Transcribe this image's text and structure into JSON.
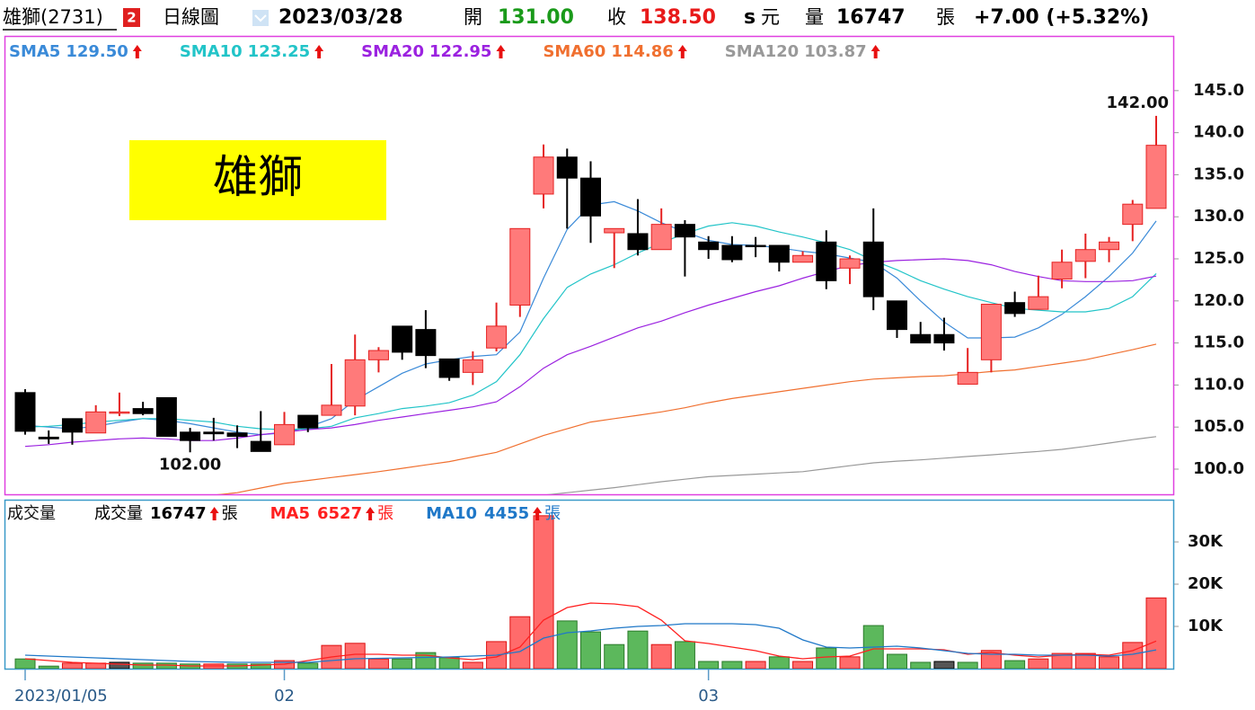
{
  "header": {
    "name": "雄獅(2731)",
    "badge": "2",
    "period": "日線圖",
    "date": "2023/03/28",
    "open_label": "開",
    "open": "131.00",
    "close_label": "收",
    "close": "138.50",
    "s": "s",
    "currency": "元",
    "volume_label": "量",
    "volume": "16747",
    "volume_unit": "張",
    "change": "+7.00 (+5.32%)"
  },
  "chart_data": [
    {
      "type": "candlestick",
      "annotation": "雄獅",
      "categories": [
        "2023/01/05",
        null,
        null,
        null,
        null,
        null,
        null,
        null,
        null,
        null,
        null,
        "02",
        null,
        null,
        null,
        null,
        null,
        null,
        null,
        null,
        null,
        null,
        null,
        null,
        null,
        null,
        null,
        null,
        null,
        "03",
        null,
        null,
        null,
        null,
        null,
        null,
        null,
        null,
        null,
        null,
        null,
        null,
        null,
        null,
        null,
        null,
        null,
        null,
        null
      ],
      "open": [
        109.1,
        103.8,
        106.0,
        104.3,
        106.8,
        107.2,
        108.5,
        104.4,
        104.4,
        104.3,
        103.3,
        102.9,
        106.4,
        106.4,
        107.5,
        113.0,
        117.0,
        116.6,
        113.1,
        111.5,
        114.4,
        119.5,
        132.7,
        137.1,
        134.6,
        128.1,
        128.0,
        126.1,
        129.1,
        127.0,
        126.6,
        126.6,
        126.6,
        124.6,
        127.0,
        123.9,
        127.0,
        120.0,
        116.0,
        116.0,
        110.1,
        113.0,
        119.8,
        119.0,
        122.6,
        124.7,
        126.1,
        129.1,
        131.0
      ],
      "high": [
        109.5,
        104.6,
        106.0,
        107.6,
        109.1,
        108.0,
        108.5,
        104.9,
        106.1,
        105.2,
        106.9,
        106.8,
        106.4,
        112.5,
        116.0,
        114.5,
        117.0,
        118.9,
        113.1,
        114.0,
        119.8,
        128.6,
        138.6,
        138.1,
        136.6,
        128.6,
        132.1,
        131.0,
        129.6,
        127.7,
        127.7,
        127.6,
        126.6,
        125.9,
        128.4,
        125.4,
        131.0,
        120.0,
        117.5,
        118.0,
        114.4,
        119.6,
        121.1,
        123.0,
        126.1,
        128.0,
        127.6,
        132.0,
        142.0
      ],
      "low": [
        104.1,
        103.0,
        102.9,
        104.3,
        106.3,
        106.4,
        103.9,
        102.0,
        103.4,
        102.5,
        102.1,
        102.9,
        104.4,
        106.4,
        106.4,
        111.5,
        113.0,
        112.0,
        110.5,
        110.0,
        114.0,
        118.1,
        131.0,
        128.6,
        126.9,
        123.9,
        125.4,
        126.1,
        122.9,
        125.0,
        124.6,
        125.2,
        123.5,
        124.6,
        121.4,
        122.0,
        118.9,
        115.6,
        115.0,
        114.1,
        110.1,
        111.5,
        118.1,
        119.0,
        121.5,
        122.7,
        124.6,
        127.1,
        131.0
      ],
      "close": [
        104.5,
        103.6,
        104.4,
        106.8,
        106.8,
        106.6,
        103.9,
        103.4,
        104.2,
        103.9,
        102.1,
        105.3,
        104.9,
        107.6,
        113.0,
        114.1,
        113.9,
        113.5,
        110.9,
        113.0,
        117.0,
        128.6,
        137.1,
        134.6,
        130.1,
        128.6,
        126.1,
        129.1,
        127.6,
        126.1,
        124.9,
        126.5,
        124.6,
        125.4,
        122.4,
        125.0,
        120.5,
        116.6,
        115.0,
        115.0,
        111.5,
        119.6,
        118.5,
        120.5,
        124.6,
        126.1,
        127.0,
        131.5,
        138.5
      ],
      "up_color": "#ff7a7a",
      "up_edge": "#e52222",
      "down_color": "#000000",
      "series": [
        {
          "name": "SMA5",
          "color": "#3a8ad8",
          "legend_value": "129.50",
          "values": [
            105.2,
            105.0,
            104.8,
            105.1,
            105.6,
            106.0,
            105.8,
            105.4,
            104.9,
            104.4,
            104.1,
            104.3,
            105.0,
            106.0,
            108.2,
            109.8,
            111.4,
            112.5,
            113.0,
            113.4,
            113.6,
            116.3,
            122.7,
            128.5,
            131.4,
            131.8,
            130.7,
            129.3,
            128.2,
            127.2,
            126.7,
            126.6,
            126.3,
            125.9,
            125.6,
            125.1,
            124.6,
            122.7,
            120.0,
            117.5,
            115.6,
            115.6,
            115.7,
            116.8,
            118.4,
            120.5,
            122.9,
            125.7,
            129.5
          ]
        },
        {
          "name": "SMA10",
          "color": "#22c4c8",
          "legend_value": "123.25",
          "values": [
            105.0,
            105.1,
            105.3,
            105.6,
            105.8,
            106.0,
            106.0,
            105.8,
            105.6,
            105.1,
            104.8,
            104.7,
            104.8,
            105.1,
            106.1,
            106.6,
            107.2,
            107.5,
            107.9,
            108.8,
            110.4,
            113.6,
            117.9,
            121.6,
            123.2,
            124.3,
            125.7,
            126.9,
            128.0,
            128.9,
            129.3,
            128.9,
            128.2,
            127.6,
            126.9,
            126.1,
            124.8,
            123.7,
            122.4,
            121.4,
            120.5,
            119.8,
            119.1,
            118.9,
            118.7,
            118.7,
            119.1,
            120.5,
            123.25
          ]
        },
        {
          "name": "SMA20",
          "color": "#9b22e0",
          "legend_value": "122.95",
          "values": [
            102.7,
            102.9,
            103.2,
            103.4,
            103.6,
            103.7,
            103.6,
            103.4,
            103.4,
            103.7,
            104.1,
            104.4,
            104.7,
            104.9,
            105.3,
            105.8,
            106.2,
            106.6,
            107.0,
            107.4,
            108.0,
            109.8,
            112.0,
            113.6,
            114.6,
            115.7,
            116.8,
            117.6,
            118.6,
            119.5,
            120.3,
            121.1,
            121.8,
            122.7,
            123.5,
            124.2,
            124.6,
            124.8,
            124.9,
            125.0,
            124.8,
            124.3,
            123.5,
            122.9,
            122.4,
            122.3,
            122.3,
            122.4,
            122.95
          ]
        },
        {
          "name": "SMA60",
          "color": "#f07030",
          "legend_value": "114.86",
          "values": [
            null,
            null,
            null,
            null,
            null,
            null,
            null,
            null,
            96.9,
            97.2,
            97.75,
            98.3,
            98.65,
            99.0,
            99.35,
            99.7,
            100.1,
            100.5,
            100.9,
            101.45,
            102.0,
            103.0,
            104.0,
            104.8,
            105.6,
            106.0,
            106.4,
            106.8,
            107.3,
            107.9,
            108.4,
            108.8,
            109.2,
            109.6,
            110.0,
            110.4,
            110.7,
            110.85,
            111.0,
            111.1,
            111.35,
            111.6,
            111.8,
            112.2,
            112.6,
            113.0,
            113.6,
            114.2,
            114.86
          ]
        },
        {
          "name": "SMA120",
          "color": "#999999",
          "legend_value": "103.87",
          "values": [
            null,
            null,
            null,
            null,
            null,
            null,
            null,
            null,
            null,
            null,
            null,
            null,
            null,
            null,
            null,
            null,
            null,
            null,
            null,
            null,
            null,
            null,
            96.9,
            97.2,
            97.5,
            97.8,
            98.15,
            98.5,
            98.8,
            99.1,
            99.25,
            99.4,
            99.55,
            99.7,
            100.05,
            100.4,
            100.75,
            100.95,
            101.1,
            101.3,
            101.5,
            101.7,
            101.9,
            102.1,
            102.35,
            102.7,
            103.1,
            103.5,
            103.87
          ]
        }
      ],
      "extremes": [
        {
          "value": 142.0,
          "label": "142.00"
        },
        {
          "value": 102.0,
          "label": "102.00"
        }
      ],
      "ylim": [
        96.9,
        151.5
      ],
      "yticks": [
        {
          "value": 100,
          "label": "100.0"
        },
        {
          "value": 105,
          "label": "105.0"
        },
        {
          "value": 110,
          "label": "110.0"
        },
        {
          "value": 115,
          "label": "115.0"
        },
        {
          "value": 120,
          "label": "120.0"
        },
        {
          "value": 125,
          "label": "125.0"
        },
        {
          "value": 130,
          "label": "130.0"
        },
        {
          "value": 135,
          "label": "135.0"
        },
        {
          "value": 140,
          "label": "140.0"
        },
        {
          "value": 145,
          "label": "145.0"
        }
      ]
    },
    {
      "type": "bar",
      "title": "成交量",
      "unit": "張",
      "series": [
        {
          "name": "成交量",
          "color": "#000000",
          "legend_value": "16747",
          "up_color": "#ff6b6b",
          "up_edge": "#dd1111",
          "down_color": "#5cb85c",
          "down_edge": "#2a7a2a",
          "flat_color": "#555555",
          "flat_edge": "#000000",
          "values": [
            2300,
            600,
            1300,
            1300,
            1500,
            1300,
            1300,
            1100,
            1100,
            1100,
            1100,
            1900,
            1300,
            5500,
            6000,
            2300,
            2300,
            3800,
            2600,
            1500,
            6400,
            12300,
            36200,
            11300,
            8700,
            5700,
            8900,
            5700,
            6400,
            1700,
            1700,
            1700,
            2800,
            1700,
            4900,
            2800,
            10200,
            3400,
            1500,
            1700,
            1500,
            4300,
            1900,
            2300,
            3600,
            3600,
            2800,
            6200,
            16747
          ]
        },
        {
          "name": "MA5",
          "color": "#ff2020",
          "legend_value": "6527",
          "values": [
            2340,
            1910,
            1490,
            1280,
            1060,
            850,
            850,
            640,
            640,
            640,
            850,
            1060,
            1910,
            2770,
            3400,
            3400,
            3190,
            3190,
            2550,
            2130,
            2770,
            5110,
            11490,
            14470,
            15530,
            15320,
            14680,
            11490,
            6600,
            5960,
            5110,
            4260,
            2980,
            2340,
            2770,
            2980,
            4680,
            4680,
            4680,
            4470,
            3400,
            3830,
            3190,
            2770,
            3190,
            3400,
            3190,
            4260,
            6527
          ]
        },
        {
          "name": "MA10",
          "color": "#1f78c8",
          "legend_value": "4455",
          "values": [
            3190,
            2980,
            2770,
            2550,
            2340,
            2130,
            1910,
            1700,
            1600,
            1490,
            1490,
            1490,
            1490,
            1910,
            2340,
            2450,
            2550,
            2660,
            2770,
            2980,
            3190,
            4040,
            7230,
            8510,
            8940,
            9570,
            10000,
            10210,
            10640,
            10640,
            10640,
            10430,
            9570,
            6810,
            5110,
            4890,
            5110,
            5320,
            4890,
            4260,
            3620,
            3400,
            3400,
            3190,
            3190,
            3190,
            2980,
            3400,
            4455
          ]
        }
      ],
      "ylim": [
        0,
        40000
      ],
      "yticks": [
        {
          "value": 10000,
          "label": "10K"
        },
        {
          "value": 20000,
          "label": "20K"
        },
        {
          "value": 30000,
          "label": "30K"
        }
      ]
    }
  ]
}
